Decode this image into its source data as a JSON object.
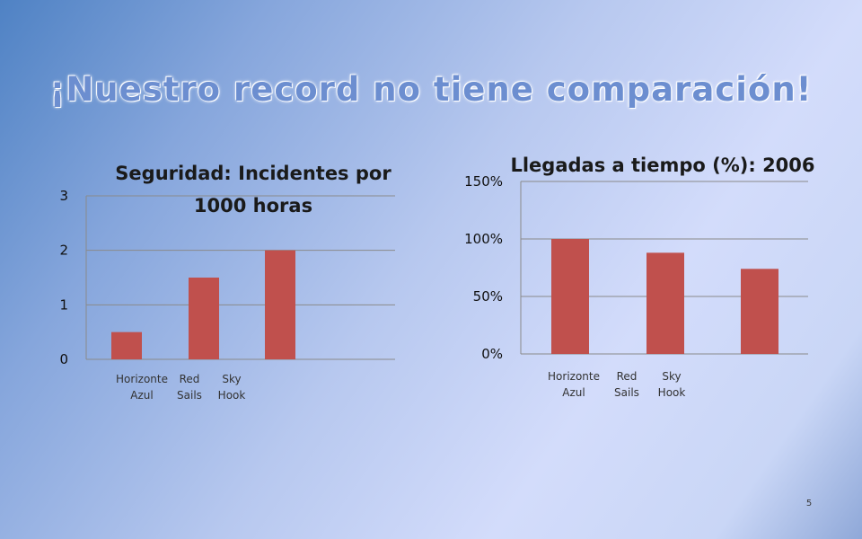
{
  "slide": {
    "title": "¡Nuestro record no tiene comparación!",
    "page_number": "5"
  },
  "colors": {
    "bar": "#c0504d",
    "gridline": "#8a8a8a",
    "title_text": "#6c8ed0"
  },
  "chart_data": [
    {
      "type": "bar",
      "title_lines": [
        "Seguridad: Incidentes por",
        "1000 horas"
      ],
      "categories": [
        [
          "Horizonte",
          "Azul"
        ],
        [
          "Red",
          "Sails"
        ],
        [
          "Sky",
          "Hook"
        ]
      ],
      "values": [
        0.5,
        1.5,
        2
      ],
      "yticks": [
        "0",
        "1",
        "2",
        "3"
      ],
      "ylim": [
        0,
        3
      ],
      "grid": true,
      "legend": "none"
    },
    {
      "type": "bar",
      "title_lines": [
        "Llegadas a tiempo (%): 2006"
      ],
      "categories": [
        [
          "Horizonte",
          "Azul"
        ],
        [
          "Red",
          "Sails"
        ],
        [
          "Sky",
          "Hook"
        ]
      ],
      "values": [
        1.0,
        0.88,
        0.74
      ],
      "yticks": [
        "0%",
        "50%",
        "100%",
        "150%"
      ],
      "ylim": [
        0,
        1.5
      ],
      "grid": true,
      "legend": "none"
    }
  ]
}
